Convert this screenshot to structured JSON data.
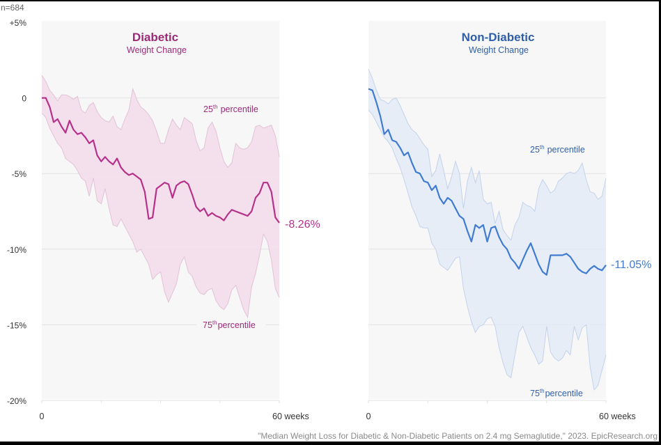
{
  "sample_note": "n=684",
  "citation": "\"Median Weight Loss for Diabetic & Non-Diabetic Patients on 2.4 mg Semaglutide,\" 2023. EpicResearch.org",
  "colors": {
    "diabetic": "#b5318a",
    "diabetic_title": "#9c2a77",
    "diabetic_band": "#f2dcea",
    "diabetic_band_edge": "#e2c2d6",
    "nondiabetic": "#3f7bd0",
    "nondiabetic_title": "#2f5fa8",
    "nondiabetic_band": "#e3ebf7",
    "nondiabetic_band_edge": "#c3d2ea",
    "panel_bg": "#f7f7f8",
    "grid": "#e2e2e4",
    "axis_text": "#333333",
    "citation_text": "#8a8a8a"
  },
  "chart_data": [
    {
      "type": "area",
      "title": "Diabetic",
      "subtitle": "Weight Change",
      "xlabel": "weeks",
      "ylabel": "Weight Change (%)",
      "xlim": [
        0,
        60
      ],
      "ylim": [
        -20,
        5
      ],
      "grid": true,
      "y_ticks": [
        {
          "value": 5,
          "label": "+5%"
        },
        {
          "value": 0,
          "label": "0"
        },
        {
          "value": -5,
          "label": "-5%"
        },
        {
          "value": -10,
          "label": "-10%"
        },
        {
          "value": -15,
          "label": "-15%"
        },
        {
          "value": -20,
          "label": "-20%"
        }
      ],
      "x_ticks": [
        {
          "value": 0,
          "label": "0"
        },
        {
          "value": 15,
          "label": ""
        },
        {
          "value": 30,
          "label": ""
        },
        {
          "value": 45,
          "label": ""
        },
        {
          "value": 60,
          "label": "60 weeks"
        }
      ],
      "end_label": "-8.26%",
      "band_labels": {
        "upper": {
          "num": "25",
          "sup": "th",
          "text": "percentile"
        },
        "lower": {
          "num": "75",
          "sup": "th",
          "text": "percentile"
        }
      },
      "x": [
        0,
        1,
        2,
        3,
        4,
        5,
        6,
        7,
        8,
        9,
        10,
        11,
        12,
        13,
        14,
        15,
        16,
        17,
        18,
        19,
        20,
        21,
        22,
        23,
        24,
        25,
        26,
        27,
        28,
        29,
        30,
        31,
        32,
        33,
        34,
        35,
        36,
        37,
        38,
        39,
        40,
        41,
        42,
        43,
        44,
        45,
        46,
        47,
        48,
        49,
        50,
        51,
        52,
        53,
        54,
        55,
        56,
        57,
        58,
        59,
        60
      ],
      "series": [
        {
          "name": "Median",
          "values": [
            0,
            0,
            -0.6,
            -1.6,
            -1.4,
            -1.9,
            -2.3,
            -1.5,
            -2.1,
            -2.4,
            -2.3,
            -2.6,
            -3.0,
            -2.8,
            -3.8,
            -4.2,
            -3.9,
            -4.2,
            -4.4,
            -4.0,
            -4.6,
            -4.9,
            -5.1,
            -5.0,
            -5.2,
            -5.4,
            -6.2,
            -8.0,
            -7.9,
            -6.0,
            -5.8,
            -5.6,
            -5.7,
            -6.6,
            -5.8,
            -5.6,
            -5.5,
            -5.7,
            -6.4,
            -7.2,
            -7.5,
            -7.3,
            -7.8,
            -7.6,
            -7.8,
            -7.9,
            -8.1,
            -7.7,
            -7.4,
            -7.5,
            -7.6,
            -7.7,
            -7.8,
            -7.5,
            -6.6,
            -6.3,
            -5.6,
            -5.6,
            -6.2,
            -7.9,
            -8.26
          ]
        },
        {
          "name": "25th percentile",
          "values": [
            1.5,
            1.1,
            0.5,
            0.2,
            -0.2,
            0.2,
            0.2,
            0.1,
            -0.1,
            0.1,
            -0.8,
            -1.0,
            -0.5,
            -0.3,
            -0.9,
            -1.3,
            -1.5,
            -1.6,
            -1.2,
            -1.9,
            -2.1,
            -1.4,
            -0.8,
            0.6,
            -0.1,
            -0.6,
            -0.8,
            -1.1,
            -1.5,
            -2.2,
            -3.0,
            -3.0,
            -2.1,
            -1.4,
            -1.8,
            -2.1,
            -1.3,
            -1.5,
            -1.7,
            -2.8,
            -3.5,
            -3.3,
            -2.0,
            -1.6,
            -2.2,
            -3.3,
            -4.2,
            -4.6,
            -4.3,
            -3.0,
            -3.3,
            -3.4,
            -3.3,
            -2.9,
            -1.9,
            -1.8,
            -2.0,
            -1.9,
            -1.8,
            -2.5,
            -3.9
          ]
        },
        {
          "name": "75th percentile",
          "values": [
            -1.0,
            -1.3,
            -2.0,
            -2.5,
            -3.0,
            -3.3,
            -4.0,
            -4.2,
            -4.4,
            -4.8,
            -5.3,
            -5.5,
            -6.5,
            -5.3,
            -6.8,
            -7.0,
            -6.0,
            -7.3,
            -8.4,
            -8.5,
            -8.0,
            -8.5,
            -9.0,
            -9.5,
            -10.2,
            -10.0,
            -10.5,
            -11.0,
            -12.0,
            -11.7,
            -11.5,
            -12.8,
            -13.5,
            -12.9,
            -12.3,
            -11.0,
            -10.5,
            -11.5,
            -11.8,
            -12.5,
            -12.9,
            -13.0,
            -12.7,
            -12.6,
            -13.4,
            -13.8,
            -14.0,
            -13.6,
            -12.7,
            -12.4,
            -13.2,
            -14.0,
            -14.5,
            -12.5,
            -11.6,
            -10.4,
            -9.0,
            -9.5,
            -10.7,
            -12.6,
            -13.2
          ]
        }
      ]
    },
    {
      "type": "area",
      "title": "Non-Diabetic",
      "subtitle": "Weight Change",
      "xlabel": "weeks",
      "ylabel": "Weight Change (%)",
      "xlim": [
        0,
        60
      ],
      "ylim": [
        -20,
        5
      ],
      "grid": true,
      "x_ticks": [
        {
          "value": 0,
          "label": "0"
        },
        {
          "value": 15,
          "label": ""
        },
        {
          "value": 30,
          "label": ""
        },
        {
          "value": 45,
          "label": ""
        },
        {
          "value": 60,
          "label": "60 weeks"
        }
      ],
      "end_label": "-11.05%",
      "band_labels": {
        "upper": {
          "num": "25",
          "sup": "th",
          "text": "percentile"
        },
        "lower": {
          "num": "75",
          "sup": "th",
          "text": "percentile"
        }
      },
      "x": [
        0,
        1,
        2,
        3,
        4,
        5,
        6,
        7,
        8,
        9,
        10,
        11,
        12,
        13,
        14,
        15,
        16,
        17,
        18,
        19,
        20,
        21,
        22,
        23,
        24,
        25,
        26,
        27,
        28,
        29,
        30,
        31,
        32,
        33,
        34,
        35,
        36,
        37,
        38,
        39,
        40,
        41,
        42,
        43,
        44,
        45,
        46,
        47,
        48,
        49,
        50,
        51,
        52,
        53,
        54,
        55,
        56,
        57,
        58,
        59,
        60
      ],
      "series": [
        {
          "name": "Median",
          "values": [
            0.6,
            0.5,
            -0.3,
            -1.2,
            -2.4,
            -2.1,
            -2.8,
            -2.9,
            -3.3,
            -3.8,
            -3.6,
            -4.3,
            -4.9,
            -5.0,
            -5.5,
            -5.6,
            -6.1,
            -5.8,
            -6.6,
            -7.0,
            -6.6,
            -6.8,
            -7.3,
            -7.8,
            -8.0,
            -8.8,
            -9.5,
            -8.4,
            -8.6,
            -8.4,
            -9.5,
            -8.6,
            -8.5,
            -9.2,
            -9.7,
            -10.0,
            -10.6,
            -10.9,
            -11.3,
            -10.7,
            -10.1,
            -9.6,
            -10.3,
            -11.0,
            -11.5,
            -11.7,
            -10.4,
            -10.4,
            -10.4,
            -10.4,
            -10.3,
            -10.5,
            -10.9,
            -11.3,
            -11.5,
            -11.6,
            -11.3,
            -11.1,
            -11.3,
            -11.4,
            -11.05
          ]
        },
        {
          "name": "25th percentile",
          "values": [
            1.9,
            1.3,
            0.5,
            -0.1,
            -0.2,
            -0.4,
            -0.1,
            0.0,
            -0.5,
            -1.1,
            -1.7,
            -2.1,
            -2.3,
            -2.7,
            -3.1,
            -3.4,
            -5.2,
            -4.8,
            -3.7,
            -4.8,
            -6.0,
            -5.2,
            -4.2,
            -5.0,
            -7.3,
            -5.5,
            -4.6,
            -5.6,
            -4.8,
            -6.7,
            -7.0,
            -6.9,
            -8.3,
            -7.5,
            -8.7,
            -9.1,
            -9.4,
            -8.4,
            -7.9,
            -6.9,
            -7.1,
            -7.2,
            -7.5,
            -6.0,
            -5.4,
            -5.8,
            -6.3,
            -6.1,
            -5.5,
            -5.3,
            -5.0,
            -4.9,
            -5.0,
            -4.8,
            -4.3,
            -5.4,
            -6.2,
            -6.3,
            -6.7,
            -6.5,
            -5.3
          ]
        },
        {
          "name": "75th percentile",
          "values": [
            -0.8,
            -1.1,
            -1.6,
            -2.1,
            -2.6,
            -2.9,
            -3.3,
            -4.0,
            -4.6,
            -5.4,
            -6.3,
            -7.2,
            -7.8,
            -8.5,
            -8.6,
            -8.6,
            -9.6,
            -10.0,
            -11.0,
            -11.2,
            -11.4,
            -11.0,
            -10.6,
            -10.5,
            -12.6,
            -13.8,
            -14.8,
            -15.5,
            -15.1,
            -15.0,
            -14.6,
            -14.5,
            -15.1,
            -16.5,
            -17.5,
            -18.3,
            -18.5,
            -17.0,
            -15.5,
            -15.1,
            -15.8,
            -16.5,
            -17.0,
            -17.6,
            -17.4,
            -15.1,
            -16.8,
            -17.2,
            -17.4,
            -17.2,
            -16.7,
            -17.0,
            -15.1,
            -16.0,
            -15.2,
            -15.0,
            -17.8,
            -19.3,
            -19.0,
            -18.0,
            -17.0
          ]
        }
      ]
    }
  ]
}
